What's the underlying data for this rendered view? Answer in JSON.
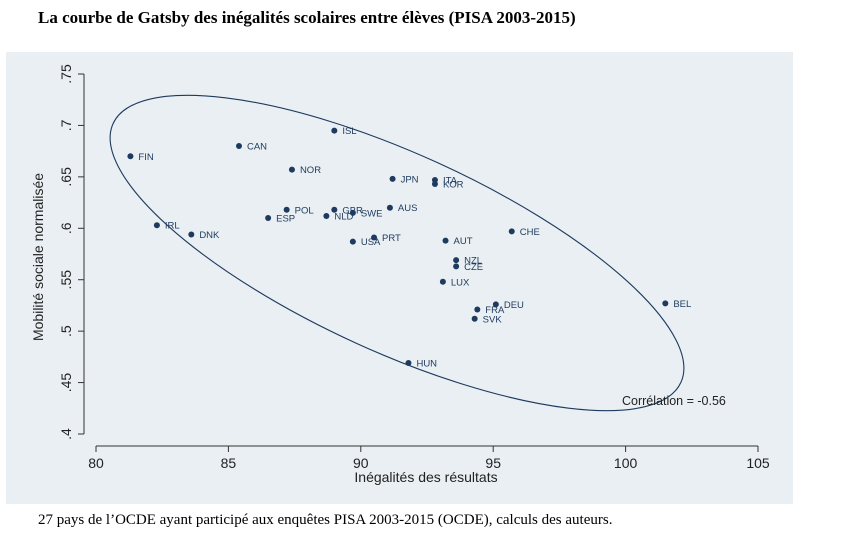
{
  "title": "La courbe de Gatsby des inégalités scolaires entre élèves (PISA 2003-2015)",
  "caption": "27 pays de l’OCDE ayant participé aux enquêtes PISA 2003-2015 (OCDE), calculs des auteurs.",
  "colors": {
    "panel_bg": "#e9eff2",
    "marker": "#1e3a5f",
    "ellipse": "#1e3a5f"
  },
  "chart_data": {
    "type": "scatter",
    "xlabel": "Inégalités des résultats",
    "ylabel": "Mobilité sociale normalisée",
    "xlim": [
      80,
      105
    ],
    "ylim": [
      0.4,
      0.75
    ],
    "xticks": [
      80,
      85,
      90,
      95,
      100,
      105
    ],
    "xtick_labels": [
      "80",
      "85",
      "90",
      "95",
      "100",
      "105"
    ],
    "yticks": [
      0.4,
      0.45,
      0.5,
      0.55,
      0.6,
      0.65,
      0.7,
      0.75
    ],
    "ytick_labels": [
      ".4",
      ".45",
      ".5",
      ".55",
      ".6",
      ".65",
      ".7",
      ".75"
    ],
    "grid": false,
    "annotation": "Corrélation = -0.56",
    "ellipse": true,
    "points": [
      {
        "label": "FIN",
        "x": 81.3,
        "y": 0.67
      },
      {
        "label": "IRL",
        "x": 82.3,
        "y": 0.603
      },
      {
        "label": "DNK",
        "x": 83.6,
        "y": 0.594
      },
      {
        "label": "CAN",
        "x": 85.4,
        "y": 0.68
      },
      {
        "label": "ESP",
        "x": 86.5,
        "y": 0.61
      },
      {
        "label": "POL",
        "x": 87.2,
        "y": 0.618
      },
      {
        "label": "NOR",
        "x": 87.4,
        "y": 0.657
      },
      {
        "label": "NLD",
        "x": 88.7,
        "y": 0.612
      },
      {
        "label": "GBR",
        "x": 89.0,
        "y": 0.618
      },
      {
        "label": "ISL",
        "x": 89.0,
        "y": 0.695
      },
      {
        "label": "SWE",
        "x": 89.7,
        "y": 0.615
      },
      {
        "label": "USA",
        "x": 89.7,
        "y": 0.587
      },
      {
        "label": "PRT",
        "x": 90.5,
        "y": 0.591
      },
      {
        "label": "JPN",
        "x": 91.2,
        "y": 0.648
      },
      {
        "label": "AUS",
        "x": 91.1,
        "y": 0.62
      },
      {
        "label": "HUN",
        "x": 91.8,
        "y": 0.469
      },
      {
        "label": "ITA",
        "x": 92.8,
        "y": 0.647
      },
      {
        "label": "KOR",
        "x": 92.8,
        "y": 0.643
      },
      {
        "label": "AUT",
        "x": 93.2,
        "y": 0.588
      },
      {
        "label": "LUX",
        "x": 93.1,
        "y": 0.548
      },
      {
        "label": "NZL",
        "x": 93.6,
        "y": 0.569
      },
      {
        "label": "CZE",
        "x": 93.6,
        "y": 0.563
      },
      {
        "label": "FRA",
        "x": 94.4,
        "y": 0.521
      },
      {
        "label": "SVK",
        "x": 94.3,
        "y": 0.512
      },
      {
        "label": "DEU",
        "x": 95.1,
        "y": 0.526
      },
      {
        "label": "CHE",
        "x": 95.7,
        "y": 0.597
      },
      {
        "label": "BEL",
        "x": 101.5,
        "y": 0.527
      }
    ]
  }
}
